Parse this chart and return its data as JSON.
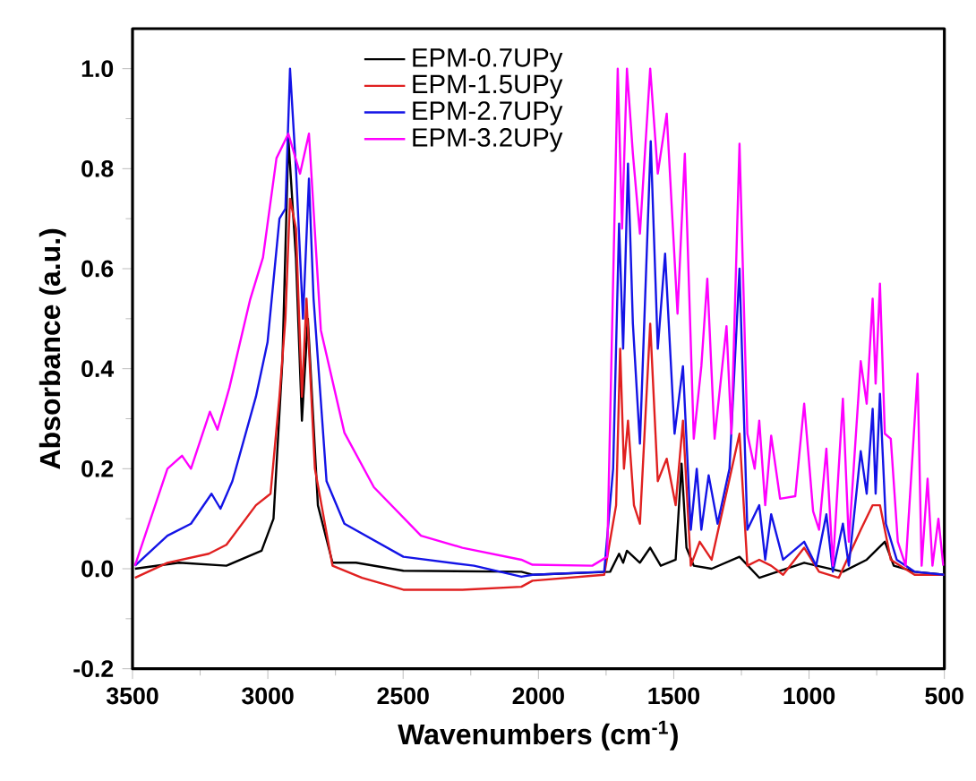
{
  "chart_data": {
    "type": "line",
    "xlabel": "Wavenumbers (cm$^{-1}$)",
    "ylabel": "Absorbance (a.u.)",
    "xlim": [
      3500,
      500
    ],
    "ylim": [
      -0.2,
      1.08
    ],
    "xticks": [
      3500,
      3000,
      2500,
      2000,
      1500,
      1000,
      500
    ],
    "yticks": [
      -0.2,
      {
        "value": 0,
        "label": "0.0"
      },
      0.2,
      0.4,
      0.6,
      0.8,
      {
        "value": 1,
        "label": "1.0"
      }
    ],
    "legend": "top",
    "marker": "none",
    "line_style": "solid",
    "series": [
      {
        "name": "EPM-0.7UPy",
        "color": "#000000",
        "x": [
          3491,
          3328,
          3153,
          3023,
          2979,
          2946,
          2924,
          2896,
          2874,
          2852,
          2815,
          2761,
          2674,
          2499,
          2063,
          2022,
          1735,
          1702,
          1687,
          1673,
          1625,
          1587,
          1548,
          1493,
          1471,
          1453,
          1426,
          1360,
          1257,
          1184,
          1018,
          875,
          787,
          720,
          687,
          610,
          500
        ],
        "values": [
          0,
          0.012,
          0.006,
          0.036,
          0.1,
          0.417,
          0.86,
          0.62,
          0.296,
          0.5,
          0.127,
          0.012,
          0.012,
          -0.004,
          -0.006,
          -0.012,
          -0.006,
          0.03,
          0.012,
          0.036,
          0.012,
          0.042,
          0.006,
          0.018,
          0.21,
          0.042,
          0.006,
          0,
          0.024,
          -0.018,
          0.012,
          -0.006,
          0.018,
          0.054,
          0.006,
          -0.006,
          -0.012
        ]
      },
      {
        "name": "EPM-1.5UPy",
        "color": "#e02020",
        "x": [
          3491,
          3371,
          3218,
          3153,
          3044,
          2990,
          2957,
          2935,
          2918,
          2896,
          2874,
          2857,
          2826,
          2761,
          2652,
          2499,
          2281,
          2063,
          2022,
          1757,
          1713,
          1698,
          1684,
          1669,
          1647,
          1625,
          1587,
          1559,
          1526,
          1493,
          1466,
          1437,
          1404,
          1360,
          1257,
          1228,
          1184,
          1140,
          1096,
          1018,
          963,
          890,
          809,
          765,
          738,
          698,
          610,
          500
        ],
        "values": [
          -0.018,
          0.012,
          0.03,
          0.048,
          0.127,
          0.15,
          0.344,
          0.5,
          0.74,
          0.68,
          0.344,
          0.54,
          0.2,
          0.006,
          -0.018,
          -0.042,
          -0.042,
          -0.036,
          -0.024,
          -0.012,
          0.127,
          0.44,
          0.2,
          0.296,
          0.127,
          0.09,
          0.49,
          0.175,
          0.22,
          0.127,
          0.296,
          0.006,
          0.054,
          0.018,
          0.27,
          0.006,
          0.018,
          0.006,
          -0.012,
          0.042,
          -0.006,
          -0.018,
          0.078,
          0.127,
          0.127,
          0.018,
          -0.012,
          -0.012
        ]
      },
      {
        "name": "EPM-2.7UPy",
        "color": "#1414e6",
        "x": [
          3491,
          3371,
          3284,
          3208,
          3175,
          3131,
          3044,
          3001,
          2957,
          2935,
          2918,
          2896,
          2870,
          2848,
          2831,
          2783,
          2717,
          2499,
          2238,
          2063,
          2022,
          1757,
          1724,
          1702,
          1687,
          1669,
          1651,
          1625,
          1585,
          1559,
          1532,
          1497,
          1466,
          1437,
          1415,
          1398,
          1371,
          1338,
          1294,
          1257,
          1228,
          1184,
          1162,
          1140,
          1096,
          1018,
          974,
          936,
          912,
          875,
          853,
          809,
          787,
          765,
          754,
          738,
          716,
          676,
          610,
          500
        ],
        "values": [
          0.006,
          0.066,
          0.09,
          0.15,
          0.12,
          0.175,
          0.344,
          0.453,
          0.7,
          0.72,
          1.0,
          0.8,
          0.5,
          0.78,
          0.54,
          0.175,
          0.09,
          0.024,
          0.006,
          -0.016,
          -0.012,
          -0.006,
          0.2,
          0.69,
          0.44,
          0.81,
          0.49,
          0.25,
          0.855,
          0.44,
          0.63,
          0.27,
          0.405,
          0.078,
          0.2,
          0.078,
          0.187,
          0.09,
          0.2,
          0.6,
          0.078,
          0.127,
          0.018,
          0.109,
          0.018,
          0.054,
          0.006,
          0.109,
          -0.006,
          0.09,
          0.006,
          0.235,
          0.15,
          0.32,
          0.15,
          0.35,
          0.09,
          0.018,
          -0.006,
          -0.012
        ]
      },
      {
        "name": "EPM-3.2UPy",
        "color": "#ff00ff",
        "x": [
          3491,
          3371,
          3317,
          3284,
          3214,
          3186,
          3142,
          3066,
          3018,
          2968,
          2924,
          2881,
          2848,
          2804,
          2717,
          2608,
          2434,
          2281,
          2063,
          2022,
          1801,
          1746,
          1707,
          1691,
          1673,
          1651,
          1625,
          1587,
          1559,
          1526,
          1486,
          1459,
          1426,
          1398,
          1376,
          1349,
          1305,
          1287,
          1257,
          1228,
          1201,
          1184,
          1162,
          1140,
          1107,
          1051,
          1018,
          985,
          963,
          936,
          912,
          875,
          853,
          809,
          787,
          765,
          754,
          738,
          720,
          698,
          672,
          643,
          599,
          584,
          562,
          544,
          522,
          504
        ],
        "values": [
          0.006,
          0.2,
          0.226,
          0.2,
          0.314,
          0.278,
          0.362,
          0.537,
          0.622,
          0.821,
          0.87,
          0.79,
          0.87,
          0.477,
          0.272,
          0.163,
          0.066,
          0.042,
          0.018,
          0.008,
          0.006,
          0.024,
          1.0,
          0.68,
          1.0,
          0.83,
          0.67,
          1.0,
          0.79,
          0.91,
          0.51,
          0.83,
          0.26,
          0.405,
          0.58,
          0.26,
          0.485,
          0.27,
          0.85,
          0.27,
          0.2,
          0.296,
          0.127,
          0.266,
          0.14,
          0.145,
          0.33,
          0.115,
          0.078,
          0.24,
          0.006,
          0.34,
          0.054,
          0.415,
          0.33,
          0.54,
          0.37,
          0.57,
          0.27,
          0.26,
          0.054,
          0.006,
          0.39,
          0.006,
          0.18,
          0.006,
          0.1,
          0.006
        ]
      }
    ]
  }
}
